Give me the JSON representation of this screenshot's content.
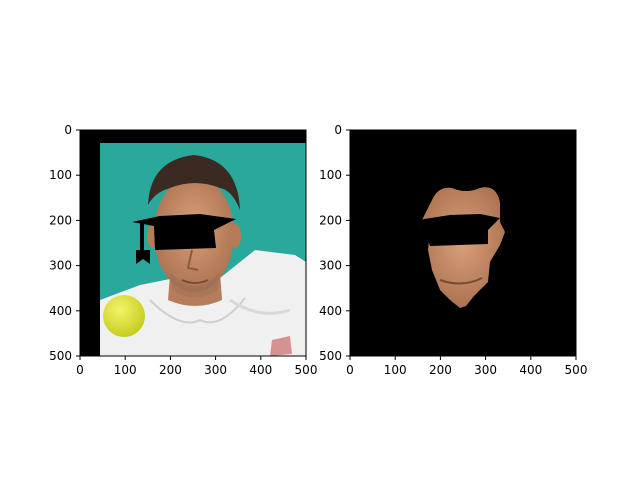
{
  "panels": [
    {
      "id": "left",
      "content": "photo of tennis player with face obscured by black bar",
      "xlim": [
        0,
        500
      ],
      "ylim": [
        500,
        0
      ],
      "x_ticks": [
        0,
        100,
        200,
        300,
        400,
        500
      ],
      "y_ticks": [
        0,
        100,
        200,
        300,
        400,
        500
      ]
    },
    {
      "id": "right",
      "content": "segmented face region on black background with eye bar",
      "xlim": [
        0,
        500
      ],
      "ylim": [
        500,
        0
      ],
      "x_ticks": [
        0,
        100,
        200,
        300,
        400,
        500
      ],
      "y_ticks": [
        0,
        100,
        200,
        300,
        400,
        500
      ]
    }
  ],
  "colors": {
    "background_teal": "#2aa89b",
    "shirt_white": "#f2f2f2",
    "skin": "#c98e6a",
    "hair_dark": "#3a2a22",
    "ball_yellow": "#e8ea3a",
    "mask_black": "#000000"
  }
}
